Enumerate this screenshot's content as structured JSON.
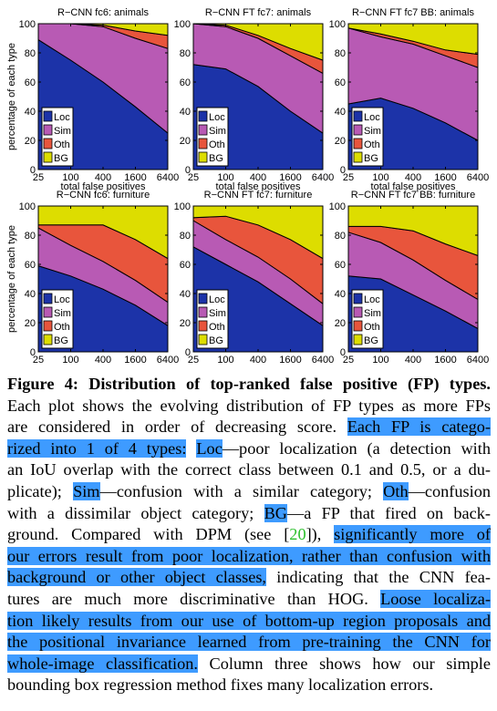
{
  "figure": {
    "ylabel": "percentage of each type",
    "xlabel": "total false positives",
    "xticks": [
      "25",
      "100",
      "400",
      "1600",
      "6400"
    ],
    "yticks": [
      "0",
      "20",
      "40",
      "60",
      "80",
      "100"
    ],
    "legend": [
      "Loc",
      "Sim",
      "Oth",
      "BG"
    ],
    "colors": {
      "Loc": "#1c33a8",
      "Sim": "#b85ab4",
      "Oth": "#e8553c",
      "BG": "#dddd00"
    }
  },
  "chart_data": [
    {
      "type": "area",
      "title": "R−CNN fc6: animals",
      "x": [
        25,
        100,
        400,
        1600,
        6400
      ],
      "ylim": [
        0,
        100
      ],
      "series": [
        {
          "name": "Loc",
          "values": [
            89,
            75,
            60,
            43,
            25
          ]
        },
        {
          "name": "Sim",
          "values": [
            11,
            25,
            38,
            47,
            58
          ]
        },
        {
          "name": "Oth",
          "values": [
            0,
            0,
            1,
            5,
            9
          ]
        },
        {
          "name": "BG",
          "values": [
            0,
            0,
            1,
            5,
            8
          ]
        }
      ]
    },
    {
      "type": "area",
      "title": "R−CNN FT fc7: animals",
      "x": [
        25,
        100,
        400,
        1600,
        6400
      ],
      "ylim": [
        0,
        100
      ],
      "series": [
        {
          "name": "Loc",
          "values": [
            72,
            69,
            57,
            40,
            25
          ]
        },
        {
          "name": "Sim",
          "values": [
            28,
            29,
            33,
            38,
            41
          ]
        },
        {
          "name": "Oth",
          "values": [
            0,
            1,
            2,
            5,
            9
          ]
        },
        {
          "name": "BG",
          "values": [
            0,
            1,
            8,
            17,
            25
          ]
        }
      ]
    },
    {
      "type": "area",
      "title": "R−CNN FT fc7 BB: animals",
      "x": [
        25,
        100,
        400,
        1600,
        6400
      ],
      "ylim": [
        0,
        100
      ],
      "series": [
        {
          "name": "Loc",
          "values": [
            45,
            49,
            42,
            32,
            20
          ]
        },
        {
          "name": "Sim",
          "values": [
            52,
            42,
            44,
            46,
            50
          ]
        },
        {
          "name": "Oth",
          "values": [
            0,
            2,
            2,
            4,
            9
          ]
        },
        {
          "name": "BG",
          "values": [
            3,
            7,
            12,
            18,
            21
          ]
        }
      ]
    },
    {
      "type": "area",
      "title": "R−CNN fc6: furniture",
      "x": [
        25,
        100,
        400,
        1600,
        6400
      ],
      "ylim": [
        0,
        100
      ],
      "series": [
        {
          "name": "Loc",
          "values": [
            59,
            52,
            43,
            32,
            18
          ]
        },
        {
          "name": "Sim",
          "values": [
            26,
            21,
            19,
            17,
            16
          ]
        },
        {
          "name": "Oth",
          "values": [
            2,
            14,
            25,
            28,
            30
          ]
        },
        {
          "name": "BG",
          "values": [
            13,
            13,
            13,
            23,
            36
          ]
        }
      ]
    },
    {
      "type": "area",
      "title": "R−CNN FT fc7: furniture",
      "x": [
        25,
        100,
        400,
        1600,
        6400
      ],
      "ylim": [
        0,
        100
      ],
      "series": [
        {
          "name": "Loc",
          "values": [
            72,
            60,
            48,
            33,
            18
          ]
        },
        {
          "name": "Sim",
          "values": [
            18,
            17,
            17,
            17,
            15
          ]
        },
        {
          "name": "Oth",
          "values": [
            2,
            16,
            22,
            27,
            31
          ]
        },
        {
          "name": "BG",
          "values": [
            8,
            7,
            13,
            23,
            36
          ]
        }
      ]
    },
    {
      "type": "area",
      "title": "R−CNN FT fc7 BB: furniture",
      "x": [
        25,
        100,
        400,
        1600,
        6400
      ],
      "ylim": [
        0,
        100
      ],
      "series": [
        {
          "name": "Loc",
          "values": [
            52,
            50,
            39,
            28,
            16
          ]
        },
        {
          "name": "Sim",
          "values": [
            30,
            25,
            24,
            21,
            20
          ]
        },
        {
          "name": "Oth",
          "values": [
            4,
            11,
            20,
            25,
            30
          ]
        },
        {
          "name": "BG",
          "values": [
            14,
            14,
            17,
            26,
            34
          ]
        }
      ]
    }
  ],
  "caption": {
    "label": "Figure 4:",
    "title": "Distribution of top-ranked false positive (FP) types.",
    "line2": "Each plot shows the evolving distribution of FP types as more FPs",
    "line3_a": "are considered in order of decreasing score.",
    "line3_b": "Each FP is catego-",
    "line4_a": "rized into 1 of 4 types:",
    "line4_b": "Loc",
    "line4_c": "—poor localization (a detection with",
    "line5": "an IoU overlap with the correct class between 0.1 and 0.5, or a du-",
    "line6_a": "plicate);",
    "line6_b": "Sim",
    "line6_c": "—confusion with a similar category;",
    "line6_d": "Oth",
    "line6_e": "—confusion",
    "line7_a": "with a dissimilar object category;",
    "line7_b": "BG",
    "line7_c": "—a FP that fired on back-",
    "line8_a": "ground.  Compared with DPM (see [",
    "line8_cite": "20",
    "line8_b": "]),",
    "line8_c": "significantly more of",
    "line9": "our errors result from poor localization, rather than confusion with",
    "line10_a": "background or other object classes,",
    "line10_b": "indicating that the CNN fea-",
    "line11_a": "tures are much more discriminative than HOG.",
    "line11_b": "Loose localiza-",
    "line12": "tion likely results from our use of bottom-up region proposals and",
    "line13": "the positional invariance learned from pre-training the CNN for",
    "line14_a": "whole-image classification.",
    "line14_b": "Column three shows how our simple",
    "line15": "bounding box regression method fixes many localization errors."
  }
}
